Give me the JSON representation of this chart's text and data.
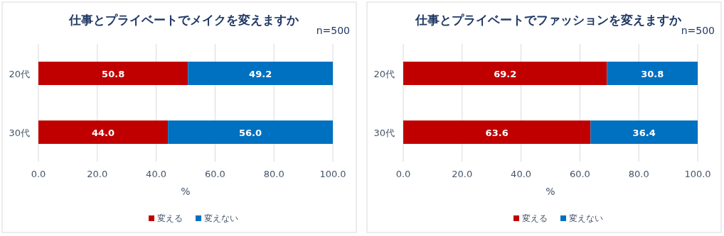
{
  "chart_data": [
    {
      "type": "bar",
      "title": "仕事とプライベートでメイクを変えますか",
      "annotations": [
        "n=500"
      ],
      "orientation": "horizontal",
      "stacked": true,
      "categories": [
        "20代",
        "30代"
      ],
      "series": [
        {
          "name": "変える",
          "color": "#c00000",
          "values": [
            50.8,
            44.0
          ],
          "value_labels": [
            "50.8",
            "44.0"
          ]
        },
        {
          "name": "変えない",
          "color": "#0070c0",
          "values": [
            49.2,
            56.0
          ],
          "value_labels": [
            "49.2",
            "56.0"
          ]
        }
      ],
      "xlim": [
        0,
        100
      ],
      "xticks": [
        {
          "value": 0,
          "label": "0.0"
        },
        {
          "value": 20,
          "label": "20.0"
        },
        {
          "value": 40,
          "label": "40.0"
        },
        {
          "value": 60,
          "label": "60.0"
        },
        {
          "value": 80,
          "label": "80.0"
        },
        {
          "value": 100,
          "label": "100.0"
        }
      ],
      "xlabel": "%",
      "grid": "x",
      "legend": "bottom"
    },
    {
      "type": "bar",
      "title": "仕事とプライベートでファッションを変えますか",
      "annotations": [
        "n=500"
      ],
      "orientation": "horizontal",
      "stacked": true,
      "categories": [
        "20代",
        "30代"
      ],
      "series": [
        {
          "name": "変える",
          "color": "#c00000",
          "values": [
            69.2,
            63.6
          ],
          "value_labels": [
            "69.2",
            "63.6"
          ]
        },
        {
          "name": "変えない",
          "color": "#0070c0",
          "values": [
            30.8,
            36.4
          ],
          "value_labels": [
            "30.8",
            "36.4"
          ]
        }
      ],
      "xlim": [
        0,
        100
      ],
      "xticks": [
        {
          "value": 0,
          "label": "0.0"
        },
        {
          "value": 20,
          "label": "20.0"
        },
        {
          "value": 40,
          "label": "40.0"
        },
        {
          "value": 60,
          "label": "60.0"
        },
        {
          "value": 80,
          "label": "80.0"
        },
        {
          "value": 100,
          "label": "100.0"
        }
      ],
      "xlabel": "%",
      "grid": "x",
      "legend": "bottom"
    }
  ]
}
